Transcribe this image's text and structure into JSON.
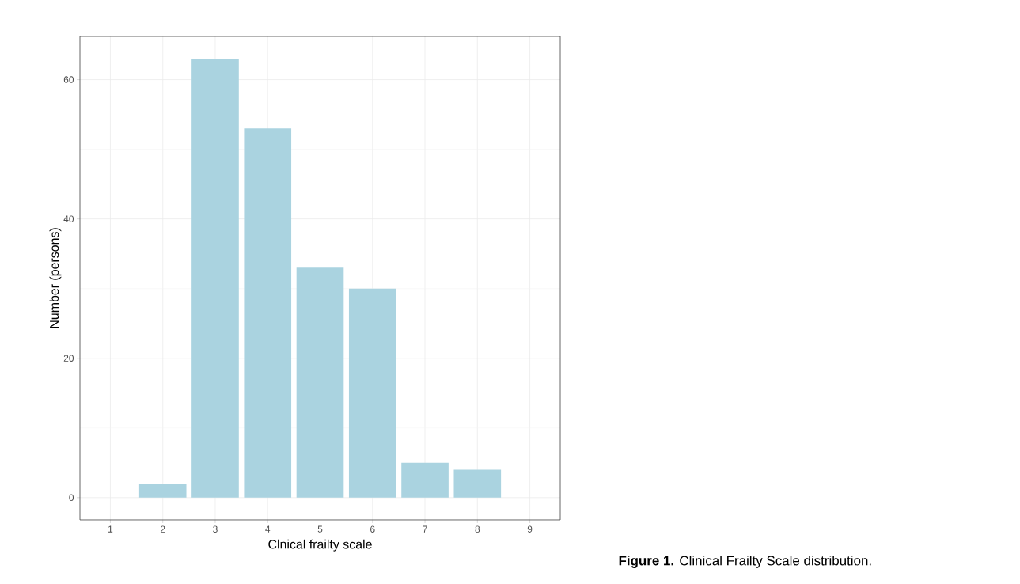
{
  "chart_data": {
    "type": "bar",
    "x": [
      2,
      3,
      4,
      5,
      6,
      7,
      8
    ],
    "values": [
      2,
      63,
      53,
      33,
      30,
      5,
      4
    ],
    "color": "#aad3e0",
    "xlabel": "Clnical frailty scale",
    "ylabel": "Number (persons)",
    "xlim": [
      0.42,
      9.58
    ],
    "ylim": [
      -3.2,
      66.2
    ],
    "xticks": [
      1,
      2,
      3,
      4,
      5,
      6,
      7,
      8,
      9
    ],
    "yticks": [
      0,
      20,
      40,
      60
    ],
    "grid": true,
    "annotations": [
      "**Figure 1.** Clinical Frailty Scale distribution."
    ]
  }
}
